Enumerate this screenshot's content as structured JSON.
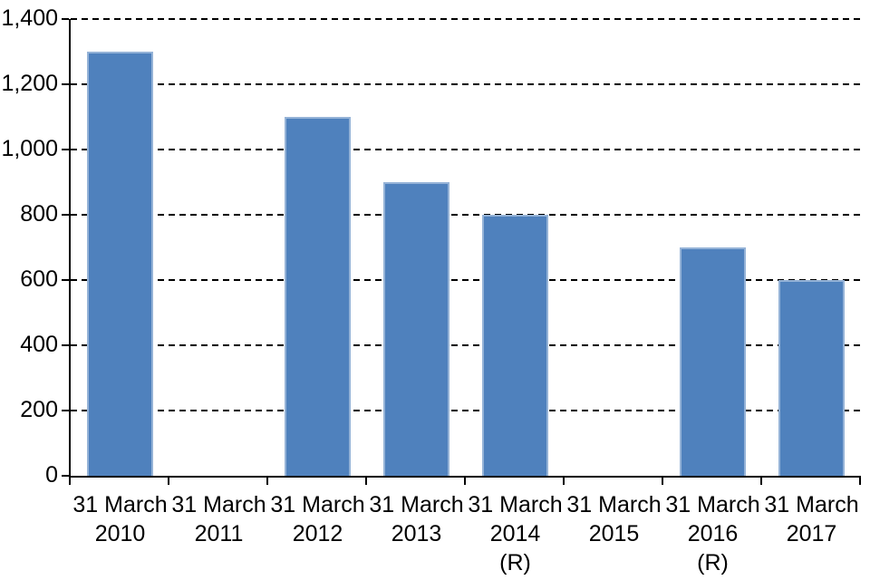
{
  "chart_data": {
    "type": "bar",
    "categories": [
      {
        "lines": [
          "31 March",
          "2010"
        ]
      },
      {
        "lines": [
          "31 March",
          "2011"
        ]
      },
      {
        "lines": [
          "31 March",
          "2012"
        ]
      },
      {
        "lines": [
          "31 March",
          "2013"
        ]
      },
      {
        "lines": [
          "31 March",
          "2014",
          "(R)"
        ]
      },
      {
        "lines": [
          "31 March",
          "2015"
        ]
      },
      {
        "lines": [
          "31 March",
          "2016",
          "(R)"
        ]
      },
      {
        "lines": [
          "31 March",
          "2017"
        ]
      }
    ],
    "values": [
      1300,
      0,
      1100,
      900,
      800,
      0,
      700,
      600
    ],
    "title": "",
    "xlabel": "",
    "ylabel": "",
    "ylim": [
      0,
      1400
    ],
    "y_tick_step": 200,
    "y_tick_labels": [
      "1,400",
      "1,200",
      "1,000",
      "800",
      "600",
      "400",
      "200",
      "0"
    ],
    "grid": "horizontal-dashed",
    "legend": "none",
    "colors": {
      "bar_fill": "#4F81BD",
      "bar_border": "#95B3D7",
      "gridline": "#000000",
      "axis": "#000000",
      "text": "#000000",
      "background": "#FFFFFF"
    }
  }
}
